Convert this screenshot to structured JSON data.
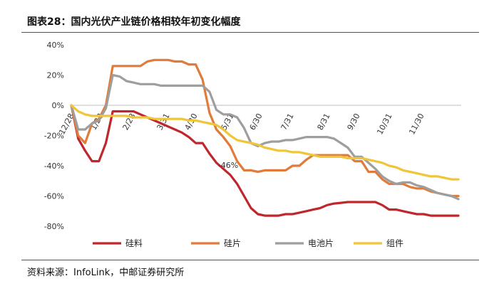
{
  "header": {
    "title": "图表28：国内光伏产业链价格相较年初变化幅度"
  },
  "footer": {
    "source": "资料来源：InfoLink，中邮证券研究所"
  },
  "chart_data": {
    "type": "line",
    "title": "",
    "xlabel": "",
    "ylabel": "",
    "ylim": [
      -80,
      40
    ],
    "yticks": [
      40,
      20,
      0,
      -20,
      -40,
      -60,
      -80
    ],
    "ytick_suffix": "%",
    "x_tick_labels": [
      "12/28",
      "1/28",
      "2/28",
      "3/31",
      "4/30",
      "5/31",
      "6/30",
      "7/31",
      "8/31",
      "9/30",
      "10/31",
      "11/30"
    ],
    "annotation": "-46%",
    "legend_position": "bottom",
    "series": [
      {
        "name": "硅料",
        "color": "#c0272d",
        "values": [
          0,
          -22,
          -30,
          -37,
          -37,
          -25,
          -4,
          -4,
          -4,
          -4,
          -6,
          -8,
          -10,
          -12,
          -14,
          -16,
          -18,
          -21,
          -25,
          -25,
          -32,
          -38,
          -42,
          -46,
          -52,
          -60,
          -68,
          -72,
          -73,
          -73,
          -73,
          -72,
          -72,
          -71,
          -70,
          -69,
          -68,
          -66,
          -65,
          -64.5,
          -64,
          -64,
          -64,
          -64,
          -64,
          -66,
          -69,
          -69,
          -70,
          -71,
          -72,
          -72,
          -73,
          -73,
          -73,
          -73,
          -73
        ]
      },
      {
        "name": "硅片",
        "color": "#e07b39",
        "values": [
          0,
          -20,
          -25,
          -12,
          -9,
          0,
          26,
          26,
          26,
          26,
          26,
          29,
          30,
          30,
          30,
          29,
          29,
          27,
          27,
          17,
          -5,
          -16,
          -21,
          -27,
          -37,
          -43,
          -43,
          -44,
          -43,
          -43,
          -43,
          -43,
          -40,
          -40,
          -36,
          -33,
          -33,
          -33,
          -33,
          -33,
          -33,
          -37,
          -37,
          -44,
          -44,
          -49,
          -52,
          -52,
          -52,
          -54,
          -55,
          -55,
          -57,
          -58,
          -59,
          -60,
          -60
        ]
      },
      {
        "name": "电池片",
        "color": "#9e9e9e",
        "values": [
          0,
          -16,
          -16,
          -12,
          -10,
          -2,
          20,
          19,
          16,
          15,
          14,
          14,
          14,
          13,
          13,
          13,
          13,
          13,
          13,
          13,
          9,
          -3,
          -6,
          -6,
          -8,
          -15,
          -25,
          -27,
          -25,
          -24,
          -24,
          -23,
          -23,
          -22,
          -21,
          -21,
          -21,
          -21,
          -22,
          -25,
          -28,
          -34,
          -34,
          -38,
          -42,
          -47,
          -50,
          -52,
          -51,
          -51,
          -53,
          -54,
          -56,
          -58,
          -59,
          -60,
          -62
        ]
      },
      {
        "name": "组件",
        "color": "#f0c53a",
        "values": [
          0,
          -4,
          -6,
          -7,
          -7,
          -7,
          -7,
          -7,
          -7,
          -8,
          -8,
          -8,
          -9,
          -9,
          -9,
          -9,
          -9,
          -10,
          -10,
          -11,
          -12,
          -13,
          -16,
          -20,
          -23,
          -24,
          -25,
          -26,
          -28,
          -29,
          -30,
          -30,
          -31,
          -31,
          -32,
          -33,
          -34,
          -34,
          -34,
          -34,
          -35,
          -35,
          -35,
          -36,
          -37,
          -38,
          -40,
          -41,
          -43,
          -44,
          -45,
          -46,
          -47,
          -47,
          -48,
          -49,
          -49
        ]
      }
    ]
  }
}
